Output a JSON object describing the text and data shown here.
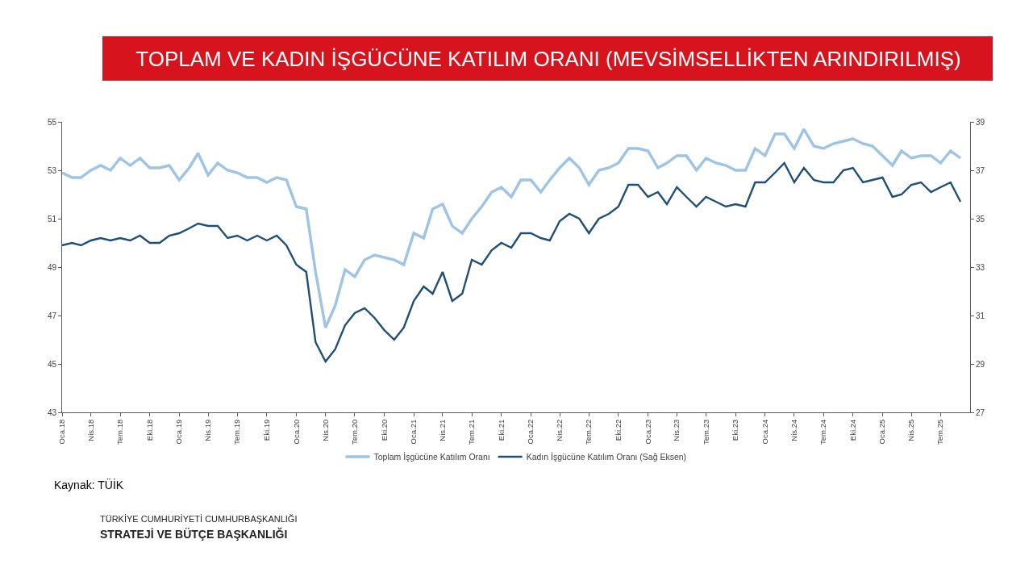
{
  "chart_data": {
    "type": "line",
    "title": "TOPLAM VE KADIN İŞGÜCÜNE KATILIM ORANI (MEVSİMSELLİKTEN ARINDIRILMIŞ)",
    "x": [
      "2018-01",
      "2018-02",
      "2018-03",
      "2018-04",
      "2018-05",
      "2018-06",
      "2018-07",
      "2018-08",
      "2018-09",
      "2018-10",
      "2018-11",
      "2018-12",
      "2019-01",
      "2019-02",
      "2019-03",
      "2019-04",
      "2019-05",
      "2019-06",
      "2019-07",
      "2019-08",
      "2019-09",
      "2019-10",
      "2019-11",
      "2019-12",
      "2020-01",
      "2020-02",
      "2020-03",
      "2020-04",
      "2020-05",
      "2020-06",
      "2020-07",
      "2020-08",
      "2020-09",
      "2020-10",
      "2020-11",
      "2020-12",
      "2021-01",
      "2021-02",
      "2021-03",
      "2021-04",
      "2021-05",
      "2021-06",
      "2021-07",
      "2021-08",
      "2021-09",
      "2021-10",
      "2021-11",
      "2021-12",
      "2022-01",
      "2022-02",
      "2022-03",
      "2022-04",
      "2022-05",
      "2022-06",
      "2022-07",
      "2022-08",
      "2022-09",
      "2022-10",
      "2022-11",
      "2022-12",
      "2023-01",
      "2023-02",
      "2023-03",
      "2023-04",
      "2023-05",
      "2023-06",
      "2023-07",
      "2023-08",
      "2023-09",
      "2023-10",
      "2023-11",
      "2023-12",
      "2024-01",
      "2024-02",
      "2024-03",
      "2024-04",
      "2024-05",
      "2024-06",
      "2024-07",
      "2024-08",
      "2024-09",
      "2024-10",
      "2024-11",
      "2024-12",
      "2025-01",
      "2025-02",
      "2025-03",
      "2025-04",
      "2025-05",
      "2025-06",
      "2025-07",
      "2025-08",
      "2025-09"
    ],
    "series": [
      {
        "name": "Toplam İşgücüne Katılım Oranı",
        "color": "#9dc3e6",
        "values": [
          52.9,
          52.7,
          52.7,
          53.0,
          53.2,
          53.0,
          53.5,
          53.2,
          53.5,
          53.1,
          53.1,
          53.2,
          52.6,
          53.1,
          53.7,
          52.8,
          53.3,
          53.0,
          52.9,
          52.7,
          52.7,
          52.5,
          52.7,
          52.6,
          51.5,
          51.4,
          48.8,
          46.5,
          47.4,
          48.9,
          48.6,
          49.3,
          49.5,
          49.4,
          49.3,
          49.1,
          50.4,
          50.2,
          51.4,
          51.6,
          50.7,
          50.4,
          51.0,
          51.5,
          52.1,
          52.3,
          51.9,
          52.6,
          52.6,
          52.1,
          52.6,
          53.1,
          53.5,
          53.1,
          52.4,
          53.0,
          53.1,
          53.3,
          53.9,
          53.9,
          53.8,
          53.1,
          53.3,
          53.6,
          53.6,
          53.0,
          53.5,
          53.3,
          53.2,
          53.0,
          53.0,
          53.9,
          53.6,
          54.5,
          54.5,
          53.9,
          54.7,
          54.0,
          53.9,
          54.1,
          54.2,
          54.3,
          54.1,
          54.0,
          53.6,
          53.2,
          53.8,
          53.5,
          53.6,
          53.6,
          53.3,
          53.8,
          53.5
        ]
      },
      {
        "name": "Kadın İşgücüne Katılım Oranı (Sağ Eksen)",
        "color": "#1f4e79",
        "axis": "y2",
        "values": [
          33.9,
          34.0,
          33.9,
          34.1,
          34.2,
          34.1,
          34.2,
          34.1,
          34.3,
          34.0,
          34.0,
          34.3,
          34.4,
          34.6,
          34.8,
          34.7,
          34.7,
          34.2,
          34.3,
          34.1,
          34.3,
          34.1,
          34.3,
          33.9,
          33.1,
          32.8,
          29.9,
          29.1,
          29.6,
          30.6,
          31.1,
          31.3,
          30.9,
          30.4,
          30.0,
          30.5,
          31.6,
          32.2,
          31.9,
          32.8,
          31.6,
          31.9,
          33.3,
          33.1,
          33.7,
          34.0,
          33.8,
          34.4,
          34.4,
          34.2,
          34.1,
          34.9,
          35.2,
          35.0,
          34.4,
          35.0,
          35.2,
          35.5,
          36.4,
          36.4,
          35.9,
          36.1,
          35.6,
          36.3,
          35.9,
          35.5,
          35.9,
          35.7,
          35.5,
          35.6,
          35.5,
          36.5,
          36.5,
          36.9,
          37.3,
          36.5,
          37.1,
          36.6,
          36.5,
          36.5,
          37.0,
          37.1,
          36.5,
          36.6,
          36.7,
          35.9,
          36.0,
          36.4,
          36.5,
          36.1,
          36.3,
          36.5,
          35.7
        ]
      }
    ],
    "xlim": [
      "2018-01",
      "2025-10"
    ],
    "xticks": [
      {
        "value": "2018-01",
        "label": "Oca.18"
      },
      {
        "value": "2018-04",
        "label": "Nis.18"
      },
      {
        "value": "2018-07",
        "label": "Tem.18"
      },
      {
        "value": "2018-10",
        "label": "Eki.18"
      },
      {
        "value": "2019-01",
        "label": "Oca.19"
      },
      {
        "value": "2019-04",
        "label": "Nis.19"
      },
      {
        "value": "2019-07",
        "label": "Tem.19"
      },
      {
        "value": "2019-10",
        "label": "Eki.19"
      },
      {
        "value": "2020-01",
        "label": "Oca.20"
      },
      {
        "value": "2020-04",
        "label": "Nis.20"
      },
      {
        "value": "2020-07",
        "label": "Tem.20"
      },
      {
        "value": "2020-10",
        "label": "Eki.20"
      },
      {
        "value": "2021-01",
        "label": "Oca.21"
      },
      {
        "value": "2021-04",
        "label": "Nis.21"
      },
      {
        "value": "2021-07",
        "label": "Tem.21"
      },
      {
        "value": "2021-10",
        "label": "Eki.21"
      },
      {
        "value": "2022-01",
        "label": "Oca.22"
      },
      {
        "value": "2022-04",
        "label": "Nis.22"
      },
      {
        "value": "2022-07",
        "label": "Tem.22"
      },
      {
        "value": "2022-10",
        "label": "Eki.22"
      },
      {
        "value": "2023-01",
        "label": "Oca.23"
      },
      {
        "value": "2023-04",
        "label": "Nis.23"
      },
      {
        "value": "2023-07",
        "label": "Tem.23"
      },
      {
        "value": "2023-10",
        "label": "Eki.23"
      },
      {
        "value": "2024-01",
        "label": "Oca.24"
      },
      {
        "value": "2024-04",
        "label": "Nis.24"
      },
      {
        "value": "2024-07",
        "label": "Tem.24"
      },
      {
        "value": "2024-10",
        "label": "Eki.24"
      },
      {
        "value": "2025-01",
        "label": "Oca.25"
      },
      {
        "value": "2025-04",
        "label": "Nis.25"
      },
      {
        "value": "2025-07",
        "label": "Tem.25"
      }
    ],
    "ylim": [
      43,
      55
    ],
    "yticks": [
      43,
      45,
      47,
      49,
      51,
      53,
      55
    ],
    "y2lim": [
      27,
      39
    ],
    "y2ticks": [
      27,
      29,
      31,
      33,
      35,
      37,
      39
    ],
    "legend": "bottom",
    "annotations": [
      "Kaynak: TÜİK",
      "TÜRKİYE CUMHURİYETİ CUMHURBAŞKANLIĞI",
      "STRATEJİ VE BÜTÇE BAŞKANLIĞI"
    ]
  }
}
